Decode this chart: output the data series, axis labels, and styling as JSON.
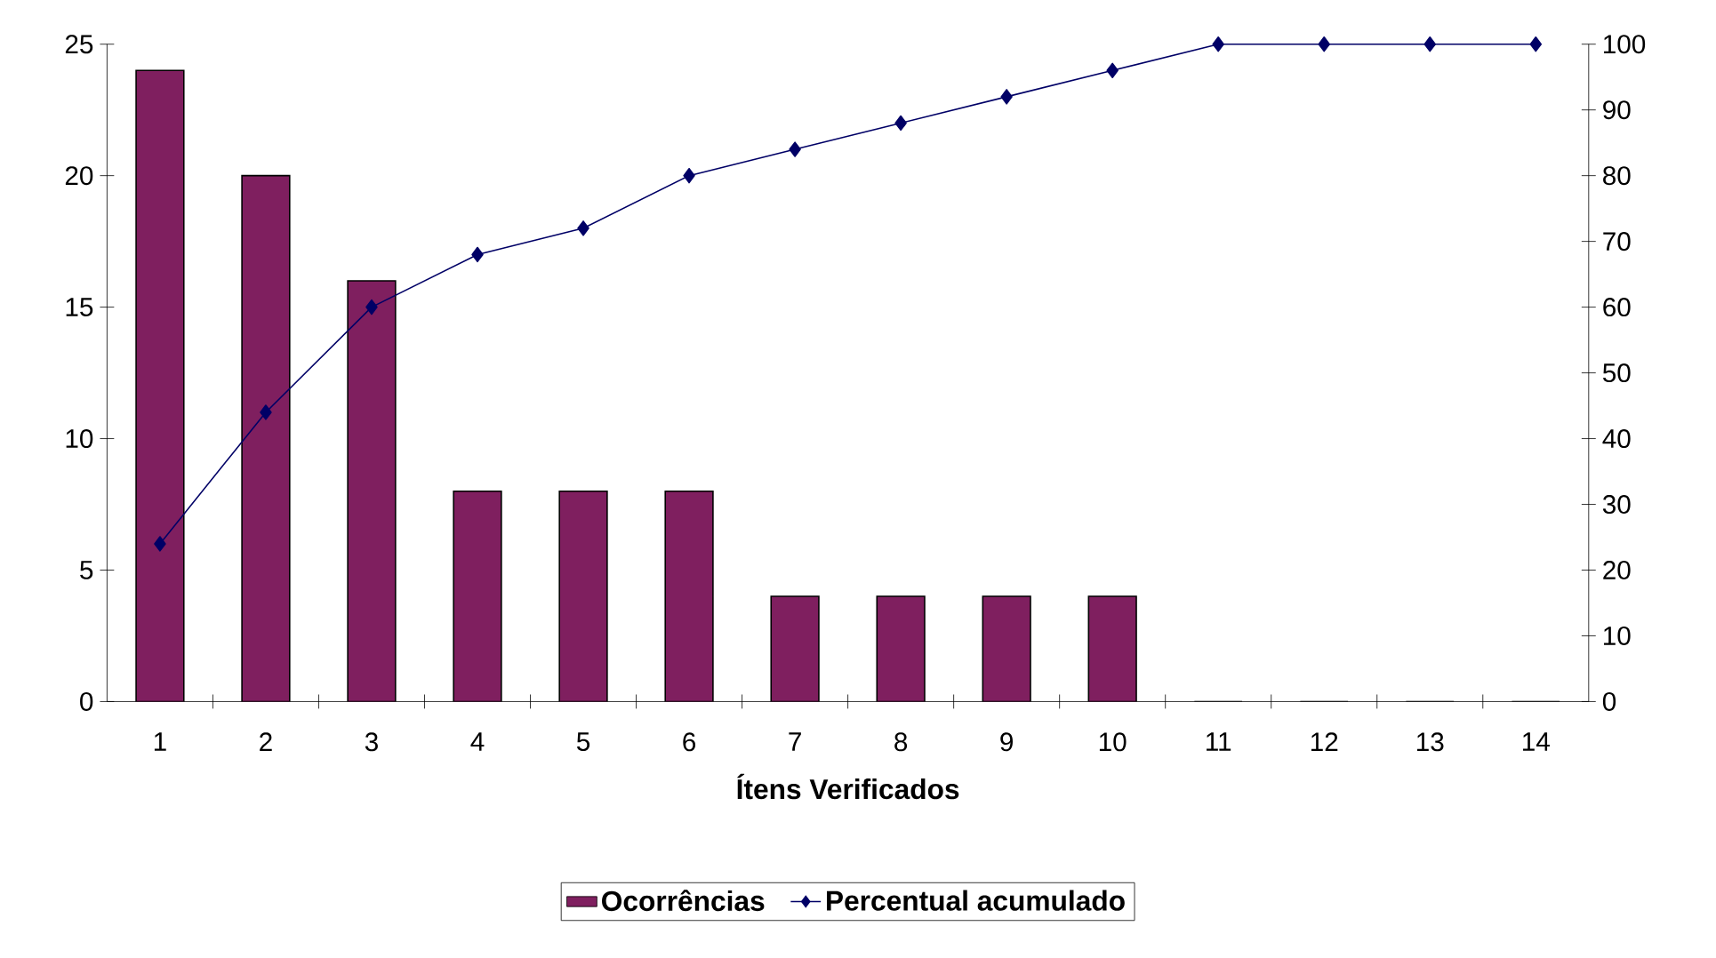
{
  "chart_data": {
    "type": "bar",
    "xlabel": "Ítens Verificados",
    "categories": [
      "1",
      "2",
      "3",
      "4",
      "5",
      "6",
      "7",
      "8",
      "9",
      "10",
      "11",
      "12",
      "13",
      "14"
    ],
    "series": [
      {
        "name": "Ocorrências",
        "color": "#7f1f5f",
        "values": [
          24,
          20,
          16,
          8,
          8,
          8,
          4,
          4,
          4,
          4,
          0,
          0,
          0,
          0
        ]
      },
      {
        "name": "Percentual acumulado",
        "type": "line",
        "axis": "y2",
        "color": "#000066",
        "values": [
          24,
          44,
          60,
          68,
          72,
          80,
          84,
          88,
          92,
          96,
          100,
          100,
          100,
          100
        ]
      }
    ],
    "ylim": [
      0,
      25
    ],
    "yticks": [
      0,
      5,
      10,
      15,
      20,
      25
    ],
    "y2lim": [
      0,
      100
    ],
    "y2ticks": [
      0,
      10,
      20,
      30,
      40,
      50,
      60,
      70,
      80,
      90,
      100
    ],
    "marker": "diamond",
    "legend": "bottom",
    "grid": false
  }
}
